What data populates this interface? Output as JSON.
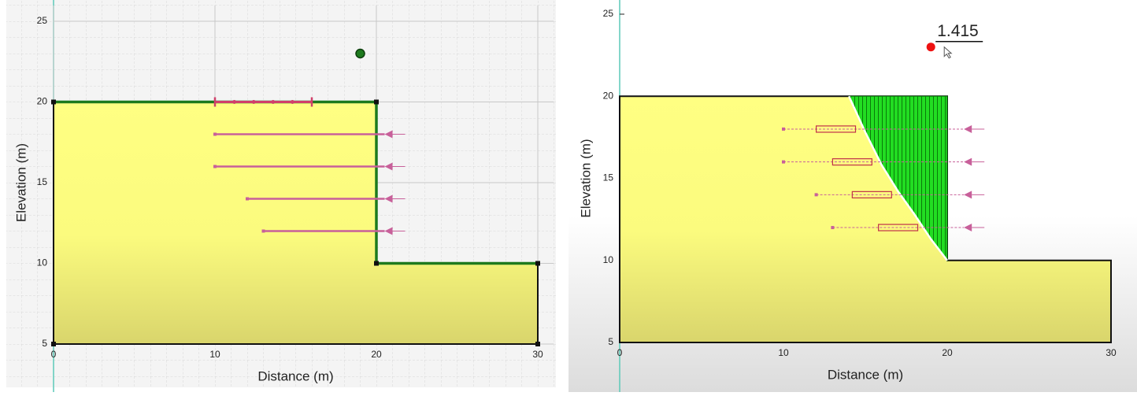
{
  "chart_data": [
    {
      "type": "section",
      "xlabel": "Distance (m)",
      "ylabel": "Elevation (m)",
      "xlim": [
        0,
        30
      ],
      "ylim": [
        5,
        25
      ],
      "xticks": [
        0,
        10,
        20,
        30
      ],
      "yticks": [
        5,
        10,
        15,
        20,
        25
      ],
      "grid": true,
      "boundary": {
        "x": [
          0,
          0,
          20,
          20,
          30,
          30,
          0
        ],
        "values": [
          5,
          20,
          20,
          10,
          10,
          5,
          5
        ]
      },
      "load": {
        "x": [
          10,
          16
        ],
        "y": 20
      },
      "anchors": [
        {
          "x": [
            10,
            21
          ],
          "y": 18
        },
        {
          "x": [
            10,
            21
          ],
          "y": 16
        },
        {
          "x": [
            12,
            21
          ],
          "y": 14
        },
        {
          "x": [
            13,
            21
          ],
          "y": 12
        }
      ],
      "center": {
        "x": 19,
        "y": 23
      }
    },
    {
      "type": "section",
      "xlabel": "Distance (m)",
      "ylabel": "Elevation (m)",
      "xlim": [
        0,
        30
      ],
      "ylim": [
        5,
        25
      ],
      "xticks": [
        0,
        10,
        20,
        30
      ],
      "yticks": [
        5,
        10,
        15,
        20,
        25
      ],
      "grid": false,
      "boundary": {
        "x": [
          0,
          0,
          20,
          20,
          30,
          30,
          0
        ],
        "values": [
          5,
          20,
          20,
          10,
          10,
          5,
          5
        ]
      },
      "slip_surface": {
        "x": [
          14,
          15,
          16,
          17,
          18,
          19,
          20
        ],
        "values": [
          20,
          17.8,
          15.8,
          14.2,
          12.8,
          11.3,
          10
        ]
      },
      "anchors": [
        {
          "x": [
            10,
            21.5
          ],
          "y": 18,
          "bond": [
            12,
            14.4
          ]
        },
        {
          "x": [
            10,
            21.5
          ],
          "y": 16,
          "bond": [
            13,
            15.4
          ]
        },
        {
          "x": [
            12,
            21.5
          ],
          "y": 14,
          "bond": [
            14.2,
            16.6
          ]
        },
        {
          "x": [
            13,
            21.5
          ],
          "y": 12,
          "bond": [
            15.8,
            18.2
          ]
        }
      ],
      "center": {
        "x": 19,
        "y": 23,
        "label": "1.415"
      }
    }
  ]
}
